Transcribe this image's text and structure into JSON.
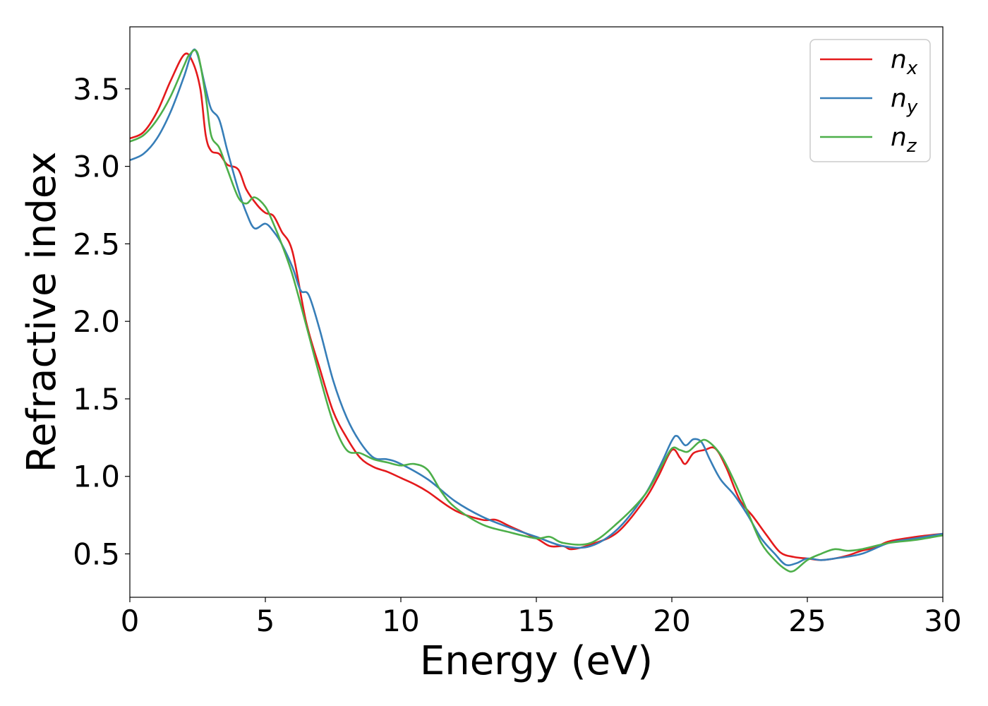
{
  "chart_data": {
    "type": "line",
    "title": "",
    "xlabel": "Energy (eV)",
    "ylabel": "Refractive index",
    "xlim": [
      0,
      30
    ],
    "ylim": [
      0.22,
      3.9
    ],
    "xticks": [
      0,
      5,
      10,
      15,
      20,
      25,
      30
    ],
    "yticks": [
      0.5,
      1.0,
      1.5,
      2.0,
      2.5,
      3.0,
      3.5
    ],
    "xtick_labels": [
      "0",
      "5",
      "10",
      "15",
      "20",
      "25",
      "30"
    ],
    "ytick_labels": [
      "0.5",
      "1.0",
      "1.5",
      "2.0",
      "2.5",
      "3.0",
      "3.5"
    ],
    "grid": false,
    "legend_position": "top-right",
    "series": [
      {
        "name": "n_x",
        "label_base": "n",
        "label_sub": "x",
        "color": "#e41a1c",
        "x": [
          0,
          0.5,
          1.0,
          1.5,
          2.0,
          2.3,
          2.6,
          2.8,
          3.0,
          3.3,
          3.6,
          4.0,
          4.3,
          4.7,
          5.0,
          5.3,
          5.6,
          6.0,
          6.5,
          7.0,
          7.5,
          8.0,
          8.5,
          9.0,
          9.5,
          10.0,
          10.5,
          11.0,
          12.0,
          13.0,
          13.5,
          14.0,
          15.0,
          15.5,
          16.0,
          16.3,
          17.0,
          18.0,
          19.0,
          19.5,
          20.0,
          20.3,
          20.5,
          20.8,
          21.2,
          21.6,
          22.0,
          22.5,
          23.0,
          23.5,
          24.0,
          24.5,
          25.0,
          25.5,
          26.0,
          26.5,
          27.0,
          27.5,
          28.0,
          29.0,
          30.0
        ],
        "y": [
          3.18,
          3.22,
          3.35,
          3.55,
          3.72,
          3.68,
          3.5,
          3.2,
          3.1,
          3.08,
          3.01,
          2.98,
          2.85,
          2.75,
          2.7,
          2.68,
          2.58,
          2.45,
          2.0,
          1.7,
          1.42,
          1.25,
          1.12,
          1.06,
          1.03,
          0.99,
          0.95,
          0.9,
          0.78,
          0.72,
          0.72,
          0.68,
          0.6,
          0.55,
          0.55,
          0.53,
          0.56,
          0.64,
          0.85,
          1.0,
          1.17,
          1.12,
          1.08,
          1.15,
          1.17,
          1.18,
          1.06,
          0.85,
          0.74,
          0.62,
          0.51,
          0.48,
          0.47,
          0.46,
          0.47,
          0.49,
          0.52,
          0.54,
          0.58,
          0.61,
          0.63
        ]
      },
      {
        "name": "n_y",
        "label_base": "n",
        "label_sub": "y",
        "color": "#377eb8",
        "x": [
          0,
          0.5,
          1.0,
          1.5,
          2.0,
          2.3,
          2.5,
          2.8,
          3.0,
          3.3,
          3.6,
          4.0,
          4.3,
          4.6,
          5.0,
          5.3,
          5.6,
          6.0,
          6.3,
          6.6,
          7.0,
          7.5,
          8.0,
          8.5,
          9.0,
          9.5,
          10.0,
          11.0,
          12.0,
          13.0,
          14.0,
          15.0,
          16.0,
          17.0,
          18.0,
          19.0,
          19.6,
          20.0,
          20.2,
          20.5,
          20.8,
          21.1,
          21.4,
          21.8,
          22.3,
          22.8,
          23.3,
          23.8,
          24.2,
          24.6,
          25.0,
          25.5,
          26.0,
          27.0,
          28.0,
          29.0,
          30.0
        ],
        "y": [
          3.04,
          3.08,
          3.18,
          3.35,
          3.58,
          3.74,
          3.72,
          3.5,
          3.37,
          3.3,
          3.1,
          2.85,
          2.7,
          2.6,
          2.63,
          2.58,
          2.5,
          2.35,
          2.2,
          2.17,
          1.95,
          1.62,
          1.38,
          1.22,
          1.12,
          1.11,
          1.08,
          0.98,
          0.84,
          0.74,
          0.67,
          0.61,
          0.55,
          0.55,
          0.66,
          0.88,
          1.08,
          1.23,
          1.26,
          1.2,
          1.24,
          1.22,
          1.11,
          0.98,
          0.88,
          0.75,
          0.6,
          0.5,
          0.43,
          0.44,
          0.47,
          0.46,
          0.47,
          0.5,
          0.57,
          0.6,
          0.63
        ]
      },
      {
        "name": "n_z",
        "label_base": "n",
        "label_sub": "z",
        "color": "#4daf4a",
        "x": [
          0,
          0.5,
          1.0,
          1.5,
          2.0,
          2.2,
          2.5,
          2.8,
          3.0,
          3.3,
          3.6,
          4.0,
          4.3,
          4.6,
          5.0,
          5.3,
          5.6,
          6.0,
          6.5,
          7.0,
          7.5,
          8.0,
          8.5,
          9.0,
          9.5,
          10.0,
          10.5,
          11.0,
          11.5,
          12.0,
          13.0,
          14.0,
          15.0,
          15.5,
          16.0,
          17.0,
          18.0,
          19.0,
          19.6,
          20.0,
          20.3,
          20.6,
          21.0,
          21.3,
          21.8,
          22.3,
          22.8,
          23.3,
          23.8,
          24.2,
          24.5,
          25.0,
          25.5,
          26.0,
          26.5,
          27.0,
          28.0,
          29.0,
          30.0
        ],
        "y": [
          3.16,
          3.2,
          3.3,
          3.45,
          3.65,
          3.72,
          3.73,
          3.45,
          3.2,
          3.12,
          2.98,
          2.8,
          2.76,
          2.8,
          2.74,
          2.63,
          2.5,
          2.3,
          1.98,
          1.65,
          1.35,
          1.17,
          1.15,
          1.11,
          1.09,
          1.07,
          1.08,
          1.04,
          0.9,
          0.8,
          0.69,
          0.64,
          0.6,
          0.61,
          0.57,
          0.57,
          0.7,
          0.88,
          1.06,
          1.18,
          1.17,
          1.16,
          1.22,
          1.23,
          1.14,
          0.97,
          0.77,
          0.57,
          0.46,
          0.4,
          0.39,
          0.46,
          0.5,
          0.53,
          0.52,
          0.53,
          0.57,
          0.59,
          0.62
        ]
      }
    ]
  }
}
